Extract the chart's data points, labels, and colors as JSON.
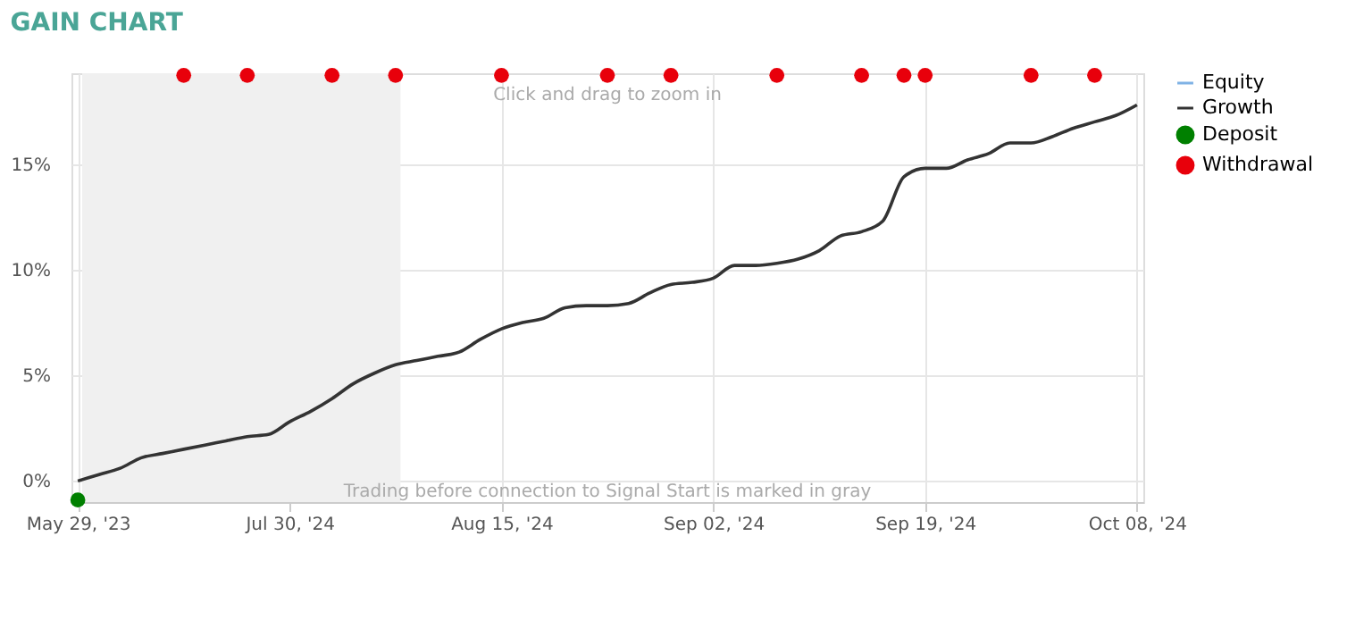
{
  "chart_data": {
    "type": "line",
    "title": "GAIN CHART",
    "annotations": [
      "Click and drag to zoom in",
      "Trading before connection to Signal Start is marked in gray"
    ],
    "categories": [
      "May 29, '23",
      null,
      null,
      null,
      null,
      null,
      null,
      null,
      null,
      null,
      "Jul 30, '24",
      null,
      null,
      null,
      null,
      null,
      null,
      null,
      null,
      null,
      "Aug 15, '24",
      null,
      null,
      null,
      null,
      null,
      null,
      null,
      null,
      null,
      "Sep 02, '24",
      null,
      null,
      null,
      null,
      null,
      null,
      null,
      null,
      null,
      "Sep 19, '24",
      null,
      null,
      null,
      null,
      null,
      null,
      null,
      null,
      null,
      "Oct 08, '24"
    ],
    "ylim": [
      -1,
      19.3
    ],
    "yticks": [
      {
        "value": 0,
        "label": "0%"
      },
      {
        "value": 5,
        "label": "5%"
      },
      {
        "value": 10,
        "label": "10%"
      },
      {
        "value": 15,
        "label": "15%"
      }
    ],
    "grid": true,
    "legend": "right",
    "series": [
      {
        "name": "Equity",
        "color": "#7fb2e5",
        "values": [
          null,
          null,
          null,
          null,
          null,
          null,
          null,
          null,
          null,
          null,
          null,
          null,
          null,
          null,
          null,
          null,
          null,
          null,
          null,
          null,
          null,
          null,
          null,
          null,
          null,
          null,
          null,
          null,
          null,
          null,
          null,
          null,
          null,
          null,
          null,
          null,
          null,
          null,
          null,
          null,
          null,
          null,
          null,
          null,
          null,
          null,
          null,
          null,
          null,
          null,
          null
        ]
      },
      {
        "name": "Growth",
        "color": "#333333",
        "values": [
          0,
          0.3,
          0.6,
          1.1,
          1.3,
          1.5,
          1.7,
          1.9,
          2.1,
          2.2,
          2.8,
          3.3,
          3.9,
          4.6,
          5.1,
          5.5,
          5.7,
          5.9,
          6.1,
          6.7,
          7.2,
          7.5,
          7.7,
          8.2,
          8.3,
          8.3,
          8.4,
          8.9,
          9.3,
          9.4,
          9.6,
          10.2,
          10.2,
          10.3,
          10.5,
          10.9,
          11.6,
          11.8,
          12.3,
          14.4,
          14.8,
          14.8,
          15.2,
          15.5,
          16.0,
          16.0,
          16.3,
          16.7,
          17.0,
          17.3,
          17.8
        ]
      },
      {
        "name": "Deposit",
        "color": "#008000",
        "type": "scatter",
        "marker": "circle",
        "values": [
          -0.9,
          null,
          null,
          null,
          null,
          null,
          null,
          null,
          null,
          null,
          null,
          null,
          null,
          null,
          null,
          null,
          null,
          null,
          null,
          null,
          null,
          null,
          null,
          null,
          null,
          null,
          null,
          null,
          null,
          null,
          null,
          null,
          null,
          null,
          null,
          null,
          null,
          null,
          null,
          null,
          null,
          null,
          null,
          null,
          null,
          null,
          null,
          null,
          null,
          null,
          null
        ]
      },
      {
        "name": "Withdrawal",
        "color": "#e8000b",
        "type": "scatter",
        "marker": "circle",
        "values": [
          null,
          null,
          null,
          null,
          null,
          19.2,
          null,
          null,
          19.2,
          null,
          null,
          null,
          19.2,
          null,
          null,
          19.2,
          null,
          null,
          null,
          null,
          19.2,
          null,
          null,
          null,
          null,
          19.2,
          null,
          null,
          19.2,
          null,
          null,
          null,
          null,
          19.2,
          null,
          null,
          null,
          19.2,
          null,
          19.2,
          19.2,
          null,
          null,
          null,
          null,
          19.2,
          null,
          null,
          19.2,
          null,
          null
        ]
      }
    ]
  }
}
